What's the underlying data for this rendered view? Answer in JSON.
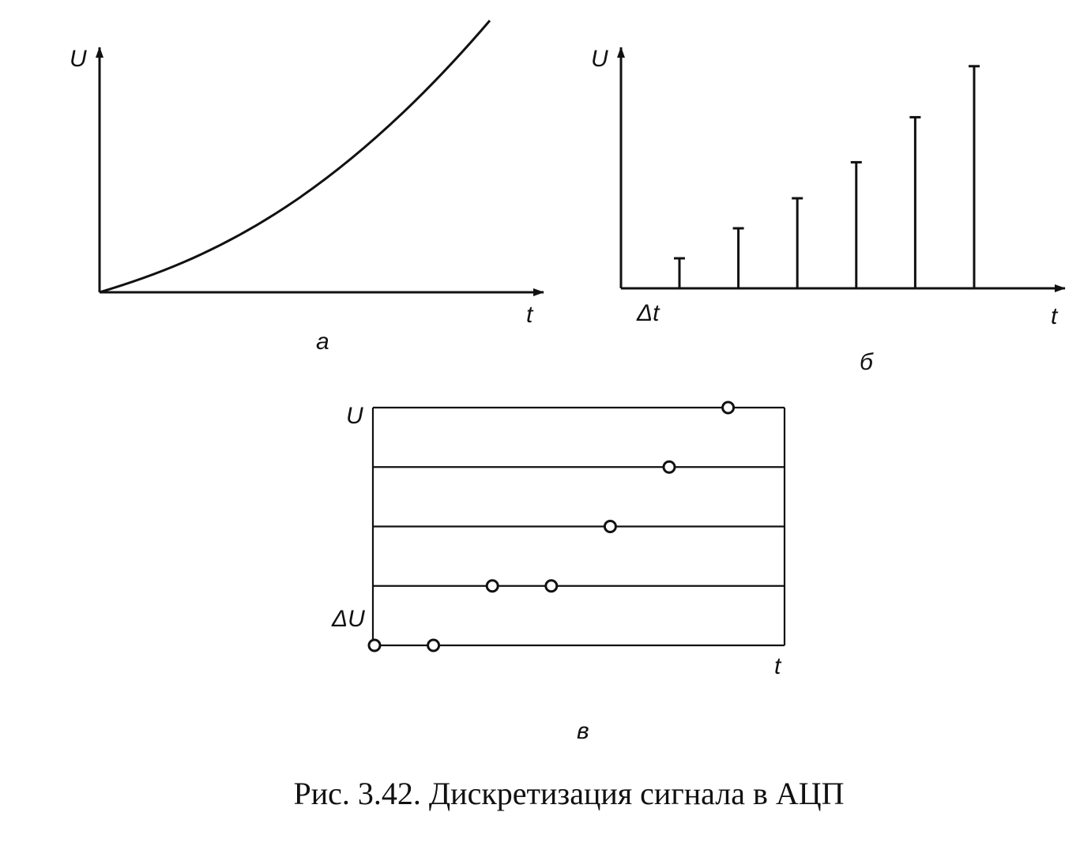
{
  "panel_a": {
    "u_label": "U",
    "t_label": "t",
    "panel_label": "а"
  },
  "panel_b": {
    "u_label": "U",
    "t_label": "t",
    "dt_label": "Δt",
    "panel_label": "б",
    "sample_values": [
      1,
      2,
      3,
      4.2,
      5.7,
      7.4
    ]
  },
  "panel_c": {
    "u_label": "U",
    "t_label": "t",
    "du_label": "ΔU",
    "panel_label": "в",
    "levels": 5,
    "quantized_points": [
      {
        "t": 0,
        "level": 0
      },
      {
        "t": 1,
        "level": 0
      },
      {
        "t": 2,
        "level": 1
      },
      {
        "t": 3,
        "level": 1
      },
      {
        "t": 4,
        "level": 2
      },
      {
        "t": 5,
        "level": 3
      },
      {
        "t": 6,
        "level": 4
      }
    ]
  },
  "caption": "Рис. 3.42. Дискретизация сигнала в АЦП"
}
